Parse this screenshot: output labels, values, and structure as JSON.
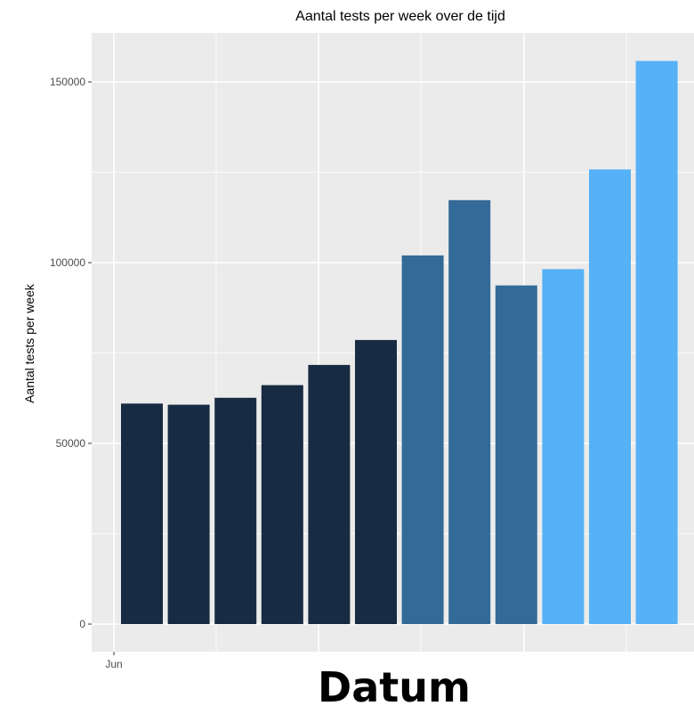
{
  "chart_data": {
    "type": "bar",
    "title": "Aantal tests per week over de tijd",
    "xlabel": "Datum",
    "ylabel": "Aantal tests per week",
    "x_tick_labels": [
      "Jun"
    ],
    "y_ticks": [
      0,
      50000,
      100000,
      150000
    ],
    "ylim": [
      -4000,
      163000
    ],
    "grid": true,
    "legend": "none",
    "colors": {
      "panel_background": "#ebebeb",
      "grid": "#ffffff",
      "dark": "#172b42",
      "medium": "#336a98",
      "light": "#56b1f7"
    },
    "values": [
      61000,
      60700,
      62600,
      66100,
      71700,
      78600,
      102000,
      117300,
      93700,
      98200,
      125800,
      155800
    ],
    "bar_shades": [
      "dark",
      "dark",
      "dark",
      "dark",
      "dark",
      "dark",
      "medium",
      "medium",
      "medium",
      "light",
      "light",
      "light"
    ]
  }
}
